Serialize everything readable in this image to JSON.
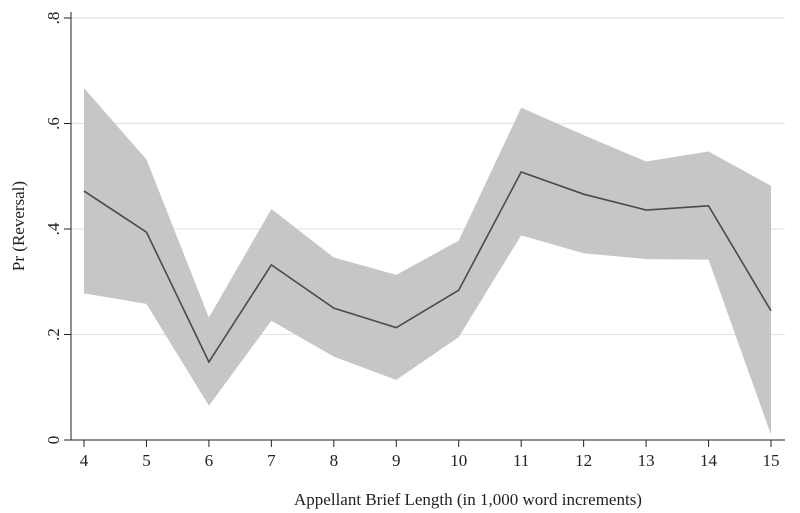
{
  "chart_data": {
    "type": "line",
    "title": "",
    "xlabel": "Appellant Brief Length (in 1,000 word increments)",
    "ylabel": "Pr (Reversal)",
    "x": [
      4,
      5,
      6,
      7,
      8,
      9,
      10,
      11,
      12,
      13,
      14,
      15
    ],
    "xticks": [
      {
        "value": 4,
        "label": "4"
      },
      {
        "value": 5,
        "label": "5"
      },
      {
        "value": 6,
        "label": "6"
      },
      {
        "value": 7,
        "label": "7"
      },
      {
        "value": 8,
        "label": "8"
      },
      {
        "value": 9,
        "label": "9"
      },
      {
        "value": 10,
        "label": "10"
      },
      {
        "value": 11,
        "label": "11"
      },
      {
        "value": 12,
        "label": "12"
      },
      {
        "value": 13,
        "label": "13"
      },
      {
        "value": 14,
        "label": "14"
      },
      {
        "value": 15,
        "label": "15"
      }
    ],
    "yticks": [
      {
        "value": 0,
        "label": "0"
      },
      {
        "value": 0.2,
        "label": ".2"
      },
      {
        "value": 0.4,
        "label": ".4"
      },
      {
        "value": 0.6,
        "label": ".6"
      },
      {
        "value": 0.8,
        "label": ".8"
      }
    ],
    "xlim": [
      4,
      15
    ],
    "ylim": [
      0,
      0.8
    ],
    "grid": true,
    "series": [
      {
        "values": [
          0.472,
          0.394,
          0.148,
          0.332,
          0.25,
          0.213,
          0.284,
          0.508,
          0.466,
          0.436,
          0.444,
          0.245
        ],
        "lower": [
          0.278,
          0.258,
          0.065,
          0.226,
          0.158,
          0.114,
          0.195,
          0.388,
          0.354,
          0.343,
          0.342,
          0.01
        ],
        "upper": [
          0.667,
          0.532,
          0.232,
          0.438,
          0.346,
          0.313,
          0.378,
          0.63,
          0.578,
          0.528,
          0.547,
          0.482
        ]
      }
    ],
    "colors": {
      "band": "#c6c6c6",
      "line": "#4a4a4a",
      "grid": "#e4e4e4"
    }
  }
}
